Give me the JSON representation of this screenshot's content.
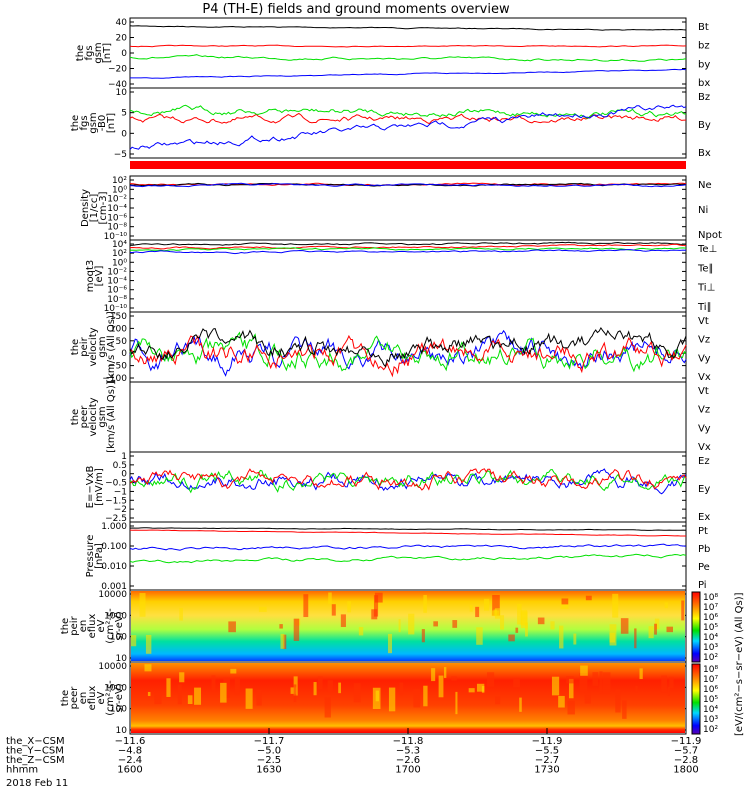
{
  "chart_data": {
    "type": "line",
    "title": "P4 (TH-E) fields and ground moments overview",
    "date": "2018 Feb 11",
    "time_range_hhmm": [
      "1600",
      "1800"
    ],
    "panels": [
      {
        "id": "fgs",
        "ylabel": [
          "the",
          "fgs",
          "gsm",
          "[nT]"
        ],
        "ylim": [
          -40,
          40
        ],
        "ticks": [
          "40",
          "20",
          "0",
          "−20",
          "−40"
        ],
        "series": [
          {
            "name": "Bt",
            "color": "#000000",
            "start": 30,
            "end": 24
          },
          {
            "name": "bz",
            "color": "#ff0000",
            "start": 8,
            "end": 8
          },
          {
            "name": "by",
            "color": "#00e000",
            "start": -2,
            "end": -5
          },
          {
            "name": "bx",
            "color": "#0000ff",
            "start": -30,
            "end": -20
          }
        ]
      },
      {
        "id": "fgs_dsl",
        "ylabel": [
          "the",
          "fgs",
          "gsm",
          "-B0",
          "[nT]"
        ],
        "ylim": [
          -7,
          10
        ],
        "ticks": [
          "10",
          "5",
          "0",
          "−5"
        ],
        "series": [
          {
            "name": "Bz",
            "color": "#ff0000",
            "start": 2.5,
            "end": 3
          },
          {
            "name": "By",
            "color": "#00e000",
            "start": 4,
            "end": 4
          },
          {
            "name": "Bx",
            "color": "#0000ff",
            "start": -4,
            "end": 6
          }
        ]
      },
      {
        "id": "density",
        "ylabel": [
          "Density",
          "[1/cc]",
          "[cm-3]"
        ],
        "ylim_log10": [
          -12,
          2
        ],
        "ticks": [
          "10²",
          "10⁰",
          "10⁻²",
          "10⁻⁴",
          "10⁻⁶",
          "10⁻⁸",
          "10⁻¹⁰"
        ],
        "series": [
          {
            "name": "Ne",
            "color": "#ff0000",
            "start_log10": 0.5,
            "end_log10": 0.5
          },
          {
            "name": "Ni",
            "color": "#000000",
            "start_log10": 0.5,
            "end_log10": 0.5
          },
          {
            "name": "Npot",
            "color": "#0000ff",
            "start_log10": 0.5,
            "end_log10": 0.5
          }
        ]
      },
      {
        "id": "temp",
        "ylabel": [
          "moqt3",
          "[eV]"
        ],
        "ylim_log10": [
          -12,
          4
        ],
        "ticks": [
          "10⁴",
          "10²",
          "10⁰",
          "10⁻²",
          "10⁻⁴",
          "10⁻⁶",
          "10⁻⁸",
          "10⁻¹⁰"
        ],
        "series": [
          {
            "name": "Te⊥",
            "color": "#ff0000"
          },
          {
            "name": "Te∥",
            "color": "#000000"
          },
          {
            "name": "Ti⊥",
            "color": "#00e000"
          },
          {
            "name": "Ti∥",
            "color": "#00e000"
          }
        ]
      },
      {
        "id": "peir_vel",
        "ylabel": [
          "the",
          "peir",
          "velocity",
          "gsm",
          "[km/s (All Qs)]"
        ],
        "ylim": [
          -100,
          150
        ],
        "ticks": [
          "150",
          "100",
          "50",
          "0",
          "−50",
          "−100"
        ],
        "series": [
          {
            "name": "Vt",
            "color": "#000000"
          },
          {
            "name": "Vz",
            "color": "#ff0000"
          },
          {
            "name": "Vy",
            "color": "#00e000"
          },
          {
            "name": "Vx",
            "color": "#0000ff"
          }
        ]
      },
      {
        "id": "peer_vel",
        "ylabel": [
          "the",
          "peer",
          "velocity",
          "gsm",
          "[km/s (All Qs)]"
        ],
        "ylim": [
          0,
          1
        ],
        "series": [
          {
            "name": "Vt",
            "color": "#000000"
          },
          {
            "name": "Vz",
            "color": "#ff0000"
          },
          {
            "name": "Vy",
            "color": "#00e000"
          },
          {
            "name": "Vx",
            "color": "#0000ff"
          }
        ]
      },
      {
        "id": "efield",
        "ylabel": [
          "E=−VxB",
          "[mV/m]"
        ],
        "ylim": [
          -3,
          1
        ],
        "ticks": [
          "1",
          "0.5",
          "0",
          "−0.5",
          "−1",
          "−1.5",
          "−2",
          "−2.5"
        ],
        "series": [
          {
            "name": "Ez",
            "color": "#ff0000"
          },
          {
            "name": "Ey",
            "color": "#00e000"
          },
          {
            "name": "Ex",
            "color": "#0000ff"
          }
        ]
      },
      {
        "id": "pressure",
        "ylabel": [
          "Pressure",
          "[nPa]"
        ],
        "ylim": [
          0.001,
          1.0
        ],
        "ticks": [
          "1.000",
          "0.100",
          "0.010",
          "0.001"
        ],
        "series": [
          {
            "name": "Pt",
            "color": "#000000",
            "start": 0.6,
            "end": 0.55
          },
          {
            "name": "Pb",
            "color": "#ff0000",
            "start": 0.5,
            "end": 0.35
          },
          {
            "name": "Pe",
            "color": "#00e000",
            "start": 0.012,
            "end": 0.025
          },
          {
            "name": "Pi",
            "color": "#0000ff",
            "start": 0.08,
            "end": 0.1
          }
        ]
      },
      {
        "id": "peir_eflux",
        "type": "heatmap",
        "ylabel": [
          "the",
          "peir",
          "en",
          "eflux",
          "eV",
          "(cm²-s-",
          "sr-eV)"
        ],
        "ylim": [
          10,
          10000
        ],
        "ticks": [
          "10000",
          "1000",
          "100",
          "10"
        ]
      },
      {
        "id": "peer_eflux",
        "type": "heatmap",
        "ylabel": [
          "the",
          "peer",
          "en",
          "eflux",
          "eV",
          "(cm²-s-",
          "sr-eV)"
        ],
        "ylim": [
          10,
          10000
        ],
        "ticks": [
          "10000",
          "1000",
          "100",
          "10"
        ]
      }
    ],
    "colorbar": {
      "label": "[eV/(cm²−s−sr−eV) (All Qs)]",
      "ticks_upper": [
        "10⁸",
        "10⁷",
        "10⁶",
        "10⁵",
        "10⁴",
        "10³",
        "10²"
      ],
      "ticks_lower": [
        "10⁸",
        "10⁷",
        "10⁶",
        "10⁵",
        "10⁴",
        "10³",
        "10²"
      ]
    },
    "x_axis": {
      "rows": [
        {
          "label": "the_X−CSM",
          "values": [
            "−11.6",
            "−11.7",
            "−11.8",
            "−11.9",
            "−11.9"
          ]
        },
        {
          "label": "the_Y−CSM",
          "values": [
            "−4.8",
            "−5.0",
            "−5.3",
            "−5.5",
            "−5.7"
          ]
        },
        {
          "label": "the_Z−CSM",
          "values": [
            "−2.4",
            "−2.5",
            "−2.6",
            "−2.7",
            "−2.8"
          ]
        },
        {
          "label": "hhmm",
          "values": [
            "1600",
            "1630",
            "1700",
            "1730",
            "1800"
          ]
        }
      ]
    }
  }
}
